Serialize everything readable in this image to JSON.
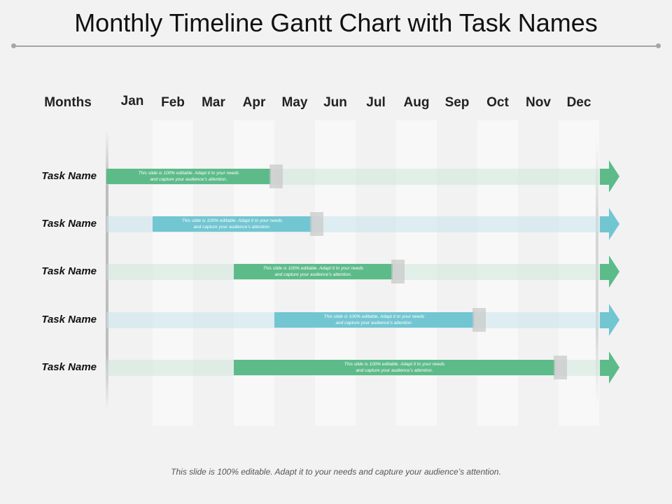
{
  "title": "Monthly Timeline Gantt Chart with Task Names",
  "header_label": "Months",
  "months": [
    "Jan",
    "Feb",
    "Mar",
    "Apr",
    "May",
    "Jun",
    "Jul",
    "Aug",
    "Sep",
    "Oct",
    "Nov",
    "Dec"
  ],
  "colors": {
    "green": "#5dbb8a",
    "blue": "#72c6d2",
    "stripe": "#f8f8f8",
    "background": "#f2f2f2"
  },
  "tasks": [
    {
      "label": "Task Name",
      "color": "green",
      "start_month": "Jan",
      "end_month": "Apr",
      "text": "This slide is 100%  editable.  Adapt  it to your needs\nand  capture  your audience’s  attention."
    },
    {
      "label": "Task Name",
      "color": "blue",
      "start_month": "Feb",
      "end_month": "May",
      "text": "This slide is 100%  editable.  Adapt  it to your needs\nand  capture  your audience’s  attention."
    },
    {
      "label": "Task Name",
      "color": "green",
      "start_month": "Apr",
      "end_month": "Jul",
      "text": "This slide is 100%  editable.  Adapt  it to your needs\nand  capture  your audience’s  attention."
    },
    {
      "label": "Task Name",
      "color": "blue",
      "start_month": "May",
      "end_month": "Sep",
      "text": "This slide is 100%  editable.  Adapt  it to your needs\nand  capture  your audience’s  attention."
    },
    {
      "label": "Task Name",
      "color": "green",
      "start_month": "Apr",
      "end_month": "Nov",
      "text": "This slide is 100%  editable.  Adapt  it to your needs\nand  capture  your audience’s  attention."
    }
  ],
  "footer": "This slide is 100% editable. Adapt it to your needs and capture your audience’s attention."
}
